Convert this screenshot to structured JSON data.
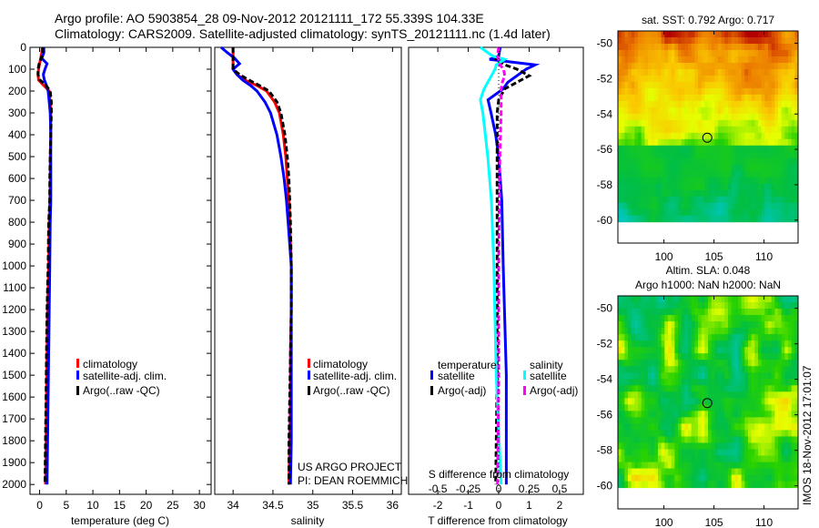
{
  "header": {
    "line1": "Argo profile: AO 5903854_28 09-Nov-2012 20121111_172 55.339S 104.33E",
    "line2": "Climatology: CARS2009. Satellite-adjusted climatology: synTS_20121111.nc (1.4d later)"
  },
  "side_stamp": "IMOS 18-Nov-2012 17:01:07",
  "credits": {
    "line1": "US ARGO PROJECT",
    "line2": "PI: DEAN ROEMMICH"
  },
  "colors": {
    "climatology": "#ff0000",
    "satellite": "#0000ff",
    "argo": "#000000",
    "sal_satellite": "#00ffff",
    "sal_argo": "#ff00ff"
  },
  "chart_data": [
    {
      "type": "line",
      "id": "temperature",
      "xlabel": "temperature (deg C)",
      "ylabel": "",
      "xlim": [
        -1.8,
        32.2
      ],
      "ylim": [
        2045,
        0
      ],
      "xticks": [
        0,
        5,
        10,
        15,
        20,
        25,
        30
      ],
      "yticks": [
        0,
        100,
        200,
        300,
        400,
        500,
        600,
        700,
        800,
        900,
        1000,
        1100,
        1200,
        1300,
        1400,
        1500,
        1600,
        1700,
        1800,
        1900,
        2000
      ],
      "legend": [
        "climatology",
        "satellite-adj. clim.",
        "Argo(..raw -QC)"
      ],
      "legend_placement": "lower-middle",
      "depth": [
        0,
        25,
        50,
        75,
        100,
        125,
        150,
        175,
        200,
        250,
        300,
        400,
        500,
        600,
        700,
        800,
        1000,
        1200,
        1400,
        1600,
        1800,
        2000
      ],
      "series": [
        {
          "name": "climatology",
          "values": [
            0.5,
            0.4,
            0.2,
            0.0,
            -0.2,
            -0.3,
            -0.2,
            0.8,
            1.8,
            2.0,
            2.1,
            2.1,
            2.0,
            2.0,
            1.9,
            1.8,
            1.7,
            1.5,
            1.4,
            1.3,
            1.2,
            1.1
          ]
        },
        {
          "name": "satellite-adj. clim.",
          "values": [
            0.8,
            0.8,
            0.4,
            1.4,
            1.0,
            0.7,
            0.9,
            1.3,
            1.6,
            1.8,
            2.0,
            2.1,
            2.1,
            2.1,
            2.1,
            2.0,
            1.9,
            1.8,
            1.7,
            1.6,
            1.5,
            1.4
          ]
        },
        {
          "name": "Argo(..raw -QC)",
          "values": [
            0.6,
            0.6,
            0.3,
            -0.1,
            -0.3,
            -0.3,
            0.1,
            1.2,
            2.0,
            2.2,
            2.2,
            2.1,
            2.0,
            1.9,
            1.9,
            1.7,
            1.6,
            1.4,
            1.3,
            1.2,
            1.1,
            1.0
          ]
        }
      ]
    },
    {
      "type": "line",
      "id": "salinity",
      "xlabel": "salinity",
      "xlim": [
        33.77,
        36.11
      ],
      "ylim": [
        2045,
        0
      ],
      "xticks": [
        34,
        34.5,
        35,
        35.5,
        36
      ],
      "xticklabels": [
        "34",
        "34.5",
        "35",
        "35.5",
        "36"
      ],
      "legend": [
        "climatology",
        "satellite-adj. clim.",
        "Argo(..raw -QC)"
      ],
      "legend_placement": "lower-middle",
      "depth": [
        0,
        25,
        50,
        75,
        100,
        125,
        150,
        175,
        200,
        250,
        300,
        400,
        500,
        600,
        700,
        800,
        1000,
        1200,
        1400,
        1600,
        1800,
        2000
      ],
      "series": [
        {
          "name": "climatology",
          "values": [
            34.0,
            34.0,
            34.0,
            34.0,
            34.0,
            34.05,
            34.15,
            34.3,
            34.42,
            34.52,
            34.58,
            34.63,
            34.66,
            34.68,
            34.7,
            34.71,
            34.73,
            34.73,
            34.72,
            34.72,
            34.71,
            34.7
          ]
        },
        {
          "name": "satellite-adj. clim.",
          "values": [
            33.85,
            33.93,
            34.02,
            34.08,
            34.0,
            34.05,
            34.12,
            34.22,
            34.3,
            34.4,
            34.47,
            34.55,
            34.6,
            34.64,
            34.67,
            34.69,
            34.73,
            34.73,
            34.73,
            34.73,
            34.73,
            34.72
          ]
        },
        {
          "name": "Argo(..raw -QC)",
          "values": [
            34.0,
            34.0,
            34.0,
            34.0,
            34.0,
            34.08,
            34.2,
            34.33,
            34.45,
            34.55,
            34.6,
            34.65,
            34.68,
            34.7,
            34.71,
            34.72,
            34.73,
            34.73,
            34.72,
            34.71,
            34.7,
            34.7
          ]
        }
      ]
    },
    {
      "type": "line",
      "id": "difference",
      "xlabel": "T difference from climatology",
      "x2label": "S difference from climatology",
      "xlim": [
        -2.96,
        2.78
      ],
      "ylim": [
        2045,
        0
      ],
      "xticks": [
        -2,
        -1,
        0,
        1,
        2
      ],
      "x2ticks": [
        -0.5,
        -0.25,
        0,
        0.25,
        0.5
      ],
      "x2ticklabels": [
        "-0.5",
        "-0.25",
        "0",
        "0.25",
        "0.5"
      ],
      "legend_headers": [
        "temperature",
        "salinity"
      ],
      "legend": [
        "satellite",
        "Argo(-adj)",
        "satellite",
        "Argo(-adj)"
      ],
      "depth": [
        0,
        40,
        55,
        80,
        100,
        130,
        160,
        190,
        240,
        300,
        400,
        500,
        700,
        1000,
        1500,
        2000
      ],
      "series": [
        {
          "name": "temperature satellite",
          "axis": "T",
          "values": [
            0.05,
            0.0,
            -0.3,
            1.2,
            0.9,
            0.6,
            0.3,
            0.15,
            -0.35,
            -0.25,
            -0.1,
            0.0,
            0.1,
            0.15,
            0.25,
            0.25
          ]
        },
        {
          "name": "temperature Argo(-adj)",
          "axis": "T",
          "values": [
            0.0,
            0.0,
            -0.1,
            0.2,
            0.6,
            1.0,
            0.6,
            0.2,
            0.0,
            -0.05,
            -0.05,
            -0.05,
            -0.05,
            -0.05,
            -0.05,
            -0.1
          ]
        },
        {
          "name": "salinity satellite",
          "axis": "S",
          "values": [
            -0.15,
            -0.05,
            0.05,
            -0.02,
            -0.03,
            -0.06,
            -0.09,
            -0.12,
            -0.15,
            -0.13,
            -0.11,
            -0.09,
            -0.06,
            -0.04,
            -0.02,
            0.02
          ]
        },
        {
          "name": "salinity Argo(-adj)",
          "axis": "S",
          "values": [
            0.0,
            -0.01,
            0.0,
            0.01,
            0.04,
            0.05,
            0.03,
            0.02,
            0.02,
            0.02,
            0.015,
            0.01,
            0.005,
            0.0,
            0.0,
            -0.01
          ]
        }
      ]
    },
    {
      "type": "heatmap",
      "id": "sst-map",
      "title": "sat. SST: 0.792 Argo: 0.717",
      "xlim": [
        95.4,
        113.4
      ],
      "ylim": [
        -61.3,
        -49.3
      ],
      "data_lat_range": [
        -60.1,
        -49.3
      ],
      "xticks": [
        100,
        105,
        110
      ],
      "yticks": [
        -50,
        -52,
        -54,
        -56,
        -58,
        -60
      ],
      "marker": {
        "lon": 104.33,
        "lat": -55.339
      }
    },
    {
      "type": "heatmap",
      "id": "sla-map",
      "title": "Altim. SLA: 0.048",
      "subtitle": "Argo h1000: NaN h2000: NaN",
      "xlim": [
        95.4,
        113.4
      ],
      "ylim": [
        -61.3,
        -49.3
      ],
      "data_lat_range": [
        -60.1,
        -49.3
      ],
      "xticks": [
        100,
        105,
        110
      ],
      "yticks": [
        -50,
        -52,
        -54,
        -56,
        -58,
        -60
      ],
      "marker": {
        "lon": 104.33,
        "lat": -55.339
      }
    }
  ]
}
